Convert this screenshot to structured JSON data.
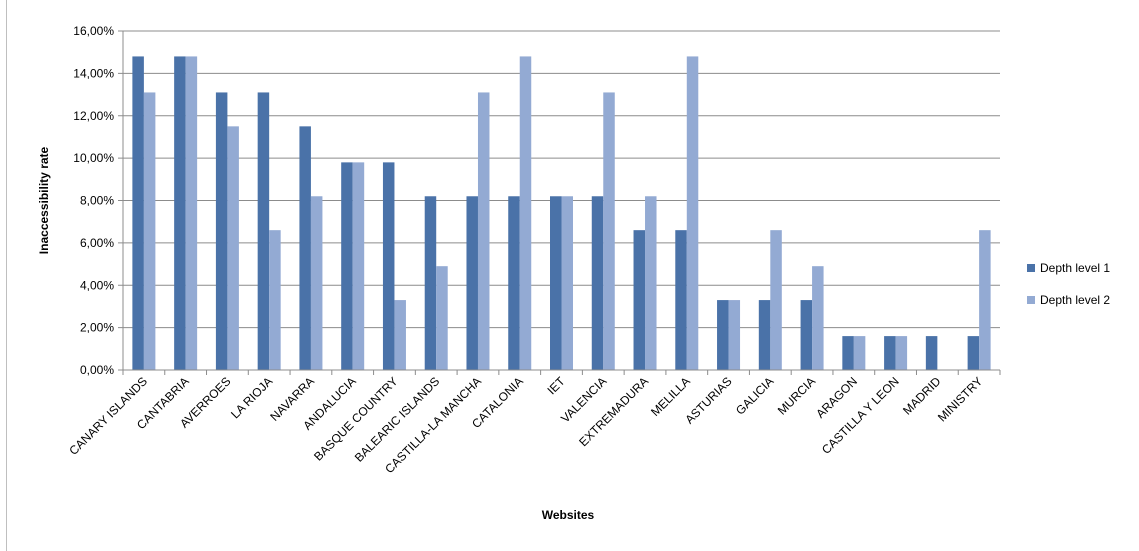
{
  "chart_data": {
    "type": "bar",
    "title": "",
    "xlabel": "Websites",
    "ylabel": "Inaccessibility rate",
    "ylim": [
      0,
      16
    ],
    "y_ticks": [
      0,
      2,
      4,
      6,
      8,
      10,
      12,
      14,
      16
    ],
    "y_tick_labels": [
      "0,00%",
      "2,00%",
      "4,00%",
      "6,00%",
      "8,00%",
      "10,00%",
      "12,00%",
      "14,00%",
      "16,00%"
    ],
    "grid": true,
    "legend_position": "right",
    "categories": [
      "CANARY ISLANDS",
      "CANTABRIA",
      "AVERROES",
      "LA RIOJA",
      "NAVARRA",
      "ANDALUCIA",
      "BASQUE COUNTRY",
      "BALEARIC ISLANDS",
      "CASTILLA-LA MANCHA",
      "CATALONIA",
      "IET",
      "VALENCIA",
      "EXTREMADURA",
      "MELILLA",
      "ASTURIAS",
      "GALICIA",
      "MURCIA",
      "ARAGON",
      "CASTILLA Y LEON",
      "MADRID",
      "MINISTRY"
    ],
    "series": [
      {
        "name": "Depth level 1",
        "color": "#4a72a8",
        "values": [
          14.8,
          14.8,
          13.1,
          13.1,
          11.5,
          9.8,
          9.8,
          8.2,
          8.2,
          8.2,
          8.2,
          8.2,
          6.6,
          6.6,
          3.3,
          3.3,
          3.3,
          1.6,
          1.6,
          1.6,
          1.6
        ]
      },
      {
        "name": "Depth level 2",
        "color": "#93aad3",
        "values": [
          13.1,
          14.8,
          11.5,
          6.6,
          8.2,
          9.8,
          3.3,
          4.9,
          13.1,
          14.8,
          8.2,
          13.1,
          8.2,
          14.8,
          3.3,
          6.6,
          4.9,
          1.6,
          1.6,
          0,
          6.6
        ]
      }
    ]
  }
}
